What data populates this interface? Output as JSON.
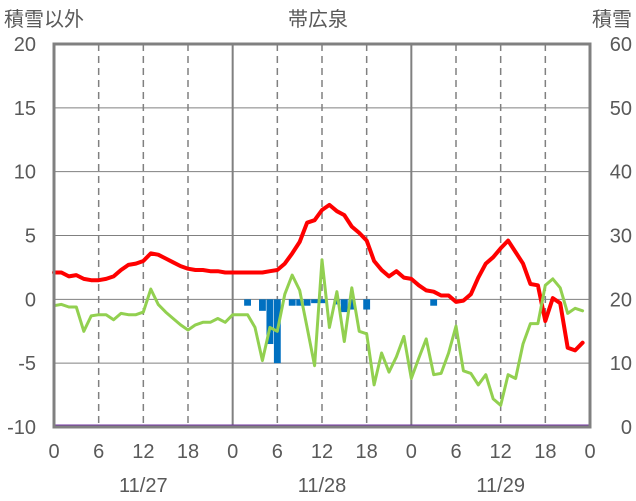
{
  "chart_data": {
    "type": "line",
    "title": "帯広泉",
    "left_axis_title": "積雪以外",
    "right_axis_title": "積雪",
    "ylim": [
      -10,
      20
    ],
    "y2lim": [
      0,
      60
    ],
    "yticks": [
      "20",
      "15",
      "10",
      "5",
      "0",
      "-5",
      "-10"
    ],
    "y2ticks": [
      "60",
      "50",
      "40",
      "30",
      "20",
      "10",
      "0"
    ],
    "xlim": [
      0,
      72
    ],
    "xticks": [
      {
        "h": 0,
        "label": "0"
      },
      {
        "h": 6,
        "label": "6"
      },
      {
        "h": 12,
        "label": "12"
      },
      {
        "h": 18,
        "label": "18"
      },
      {
        "h": 24,
        "label": "0"
      },
      {
        "h": 30,
        "label": "6"
      },
      {
        "h": 36,
        "label": "12"
      },
      {
        "h": 42,
        "label": "18"
      },
      {
        "h": 48,
        "label": "0"
      },
      {
        "h": 54,
        "label": "6"
      },
      {
        "h": 60,
        "label": "12"
      },
      {
        "h": 66,
        "label": "18"
      },
      {
        "h": 72,
        "label": "0"
      }
    ],
    "dates": [
      {
        "h": 12,
        "label": "11/27"
      },
      {
        "h": 36,
        "label": "11/28"
      },
      {
        "h": 60,
        "label": "11/29"
      }
    ],
    "colors": {
      "temperature": "#ff0000",
      "dewpoint": "#92d050",
      "precipitation": "#0070c0",
      "snow_depth": "#7030a0",
      "axis": "#808080",
      "text": "#595959"
    },
    "series": [
      {
        "key": "temperature",
        "x": [
          0,
          1,
          2,
          3,
          4,
          5,
          6,
          7,
          8,
          9,
          10,
          11,
          12,
          13,
          14,
          15,
          16,
          17,
          18,
          19,
          20,
          21,
          22,
          23,
          24,
          25,
          26,
          27,
          28,
          29,
          30,
          31,
          32,
          33,
          34,
          35,
          36,
          37,
          38,
          39,
          40,
          41,
          42,
          43,
          44,
          45,
          46,
          47,
          48,
          49,
          50,
          51,
          52,
          53,
          54,
          55,
          56,
          57,
          58,
          59,
          60,
          61,
          62,
          63,
          64,
          65,
          66,
          67,
          68,
          69,
          70,
          71
        ],
        "y": [
          2.1,
          2.1,
          1.8,
          1.9,
          1.6,
          1.5,
          1.5,
          1.6,
          1.8,
          2.3,
          2.7,
          2.8,
          3.0,
          3.6,
          3.5,
          3.2,
          2.9,
          2.6,
          2.4,
          2.3,
          2.3,
          2.2,
          2.2,
          2.1,
          2.1,
          2.1,
          2.1,
          2.1,
          2.1,
          2.2,
          2.3,
          2.8,
          3.6,
          4.5,
          6.0,
          6.2,
          7.0,
          7.4,
          6.9,
          6.6,
          5.7,
          5.2,
          4.6,
          3.0,
          2.3,
          1.8,
          2.2,
          1.7,
          1.6,
          1.1,
          0.7,
          0.6,
          0.3,
          0.3,
          -0.2,
          -0.1,
          0.4,
          1.7,
          2.8,
          3.3,
          4.0,
          4.6,
          3.7,
          2.8,
          1.2,
          1.1,
          -1.7,
          0.1,
          -0.3,
          -3.8,
          -4.0,
          -3.4
        ]
      },
      {
        "key": "dewpoint",
        "x": [
          0,
          1,
          2,
          3,
          4,
          5,
          6,
          7,
          8,
          9,
          10,
          11,
          12,
          13,
          14,
          15,
          16,
          17,
          18,
          19,
          20,
          21,
          22,
          23,
          24,
          25,
          26,
          27,
          28,
          29,
          30,
          31,
          32,
          33,
          34,
          35,
          36,
          37,
          38,
          39,
          40,
          41,
          42,
          43,
          44,
          45,
          46,
          47,
          48,
          49,
          50,
          51,
          52,
          53,
          54,
          55,
          56,
          57,
          58,
          59,
          60,
          61,
          62,
          63,
          64,
          65,
          66,
          67,
          68,
          69,
          70,
          71
        ],
        "y": [
          -0.5,
          -0.4,
          -0.6,
          -0.6,
          -2.5,
          -1.3,
          -1.2,
          -1.2,
          -1.6,
          -1.1,
          -1.2,
          -1.2,
          -1.0,
          0.8,
          -0.4,
          -1.0,
          -1.5,
          -2.0,
          -2.4,
          -2.0,
          -1.8,
          -1.8,
          -1.5,
          -1.8,
          -1.2,
          -1.2,
          -1.2,
          -2.2,
          -4.8,
          -2.2,
          -2.5,
          0.4,
          1.9,
          0.7,
          -2.2,
          -5.2,
          3.1,
          -2.2,
          0.6,
          -3.3,
          0.9,
          -2.5,
          -2.7,
          -6.7,
          -4.2,
          -5.7,
          -4.5,
          -2.9,
          -6.2,
          -4.6,
          -3.1,
          -5.9,
          -5.8,
          -4.2,
          -2.1,
          -5.6,
          -5.8,
          -6.7,
          -5.9,
          -7.8,
          -8.3,
          -5.9,
          -6.2,
          -3.5,
          -1.9,
          -1.9,
          1.1,
          1.6,
          0.9,
          -1.1,
          -0.7,
          -0.9
        ]
      }
    ],
    "precipitation": {
      "x": [
        26,
        28,
        29,
        30,
        32,
        33,
        34,
        35,
        36,
        38,
        39,
        40,
        42,
        51
      ],
      "y": [
        0.5,
        0.9,
        3.5,
        5.0,
        0.5,
        0.5,
        0.5,
        0.3,
        0.3,
        0.4,
        1.0,
        0.8,
        0.8,
        0.5
      ]
    },
    "snow_depth": {
      "x": [
        0,
        72
      ],
      "y": [
        0,
        0
      ]
    }
  }
}
